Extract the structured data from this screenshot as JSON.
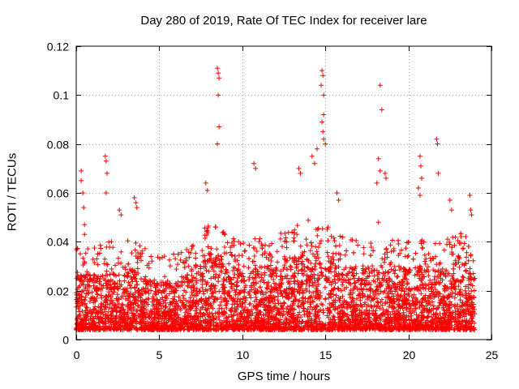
{
  "colors": {
    "series": "#ff0000",
    "axis": "#000000",
    "grid": "#a0a0a0",
    "background": "#ffffff"
  },
  "chart_data": {
    "type": "scatter",
    "title": "Day 280 of 2019, Rate Of TEC Index for receiver lare",
    "xlabel": "GPS time / hours",
    "ylabel": "ROTI / TECUs",
    "xlim": [
      0,
      25
    ],
    "ylim": [
      0,
      0.12
    ],
    "xticks": [
      0,
      5,
      10,
      15,
      20,
      25
    ],
    "xtick_labels": [
      "0",
      "5",
      "10",
      "15",
      "20",
      "25"
    ],
    "yticks": [
      0,
      0.02,
      0.04,
      0.06,
      0.08,
      0.1,
      0.12
    ],
    "ytick_labels": [
      "0",
      "0.02",
      "0.04",
      "0.06",
      "0.08",
      "0.1",
      "0.12"
    ],
    "grid": true,
    "marker": "+",
    "series": [
      {
        "name": "ROTI",
        "notable_points": [
          {
            "x": 0.3,
            "y": 0.069
          },
          {
            "x": 0.3,
            "y": 0.065
          },
          {
            "x": 0.4,
            "y": 0.06
          },
          {
            "x": 0.45,
            "y": 0.054
          },
          {
            "x": 0.5,
            "y": 0.047
          },
          {
            "x": 0.5,
            "y": 0.043
          },
          {
            "x": 1.75,
            "y": 0.075
          },
          {
            "x": 1.8,
            "y": 0.073
          },
          {
            "x": 1.85,
            "y": 0.068
          },
          {
            "x": 1.8,
            "y": 0.06
          },
          {
            "x": 2.6,
            "y": 0.053
          },
          {
            "x": 2.7,
            "y": 0.051
          },
          {
            "x": 3.5,
            "y": 0.058
          },
          {
            "x": 3.6,
            "y": 0.056
          },
          {
            "x": 3.65,
            "y": 0.054
          },
          {
            "x": 8.5,
            "y": 0.111
          },
          {
            "x": 8.55,
            "y": 0.109
          },
          {
            "x": 8.6,
            "y": 0.107
          },
          {
            "x": 8.55,
            "y": 0.1
          },
          {
            "x": 8.6,
            "y": 0.087
          },
          {
            "x": 8.5,
            "y": 0.08
          },
          {
            "x": 7.8,
            "y": 0.064
          },
          {
            "x": 7.9,
            "y": 0.061
          },
          {
            "x": 10.7,
            "y": 0.072
          },
          {
            "x": 10.8,
            "y": 0.07
          },
          {
            "x": 13.4,
            "y": 0.07
          },
          {
            "x": 13.5,
            "y": 0.068
          },
          {
            "x": 14.2,
            "y": 0.075
          },
          {
            "x": 14.35,
            "y": 0.072
          },
          {
            "x": 14.5,
            "y": 0.078
          },
          {
            "x": 14.8,
            "y": 0.11
          },
          {
            "x": 14.85,
            "y": 0.108
          },
          {
            "x": 14.75,
            "y": 0.104
          },
          {
            "x": 14.9,
            "y": 0.1
          },
          {
            "x": 14.9,
            "y": 0.092
          },
          {
            "x": 14.8,
            "y": 0.089
          },
          {
            "x": 14.85,
            "y": 0.085
          },
          {
            "x": 14.9,
            "y": 0.082
          },
          {
            "x": 15.0,
            "y": 0.08
          },
          {
            "x": 15.7,
            "y": 0.06
          },
          {
            "x": 15.8,
            "y": 0.057
          },
          {
            "x": 18.3,
            "y": 0.104
          },
          {
            "x": 18.4,
            "y": 0.094
          },
          {
            "x": 18.2,
            "y": 0.074
          },
          {
            "x": 18.3,
            "y": 0.069
          },
          {
            "x": 18.1,
            "y": 0.064
          },
          {
            "x": 18.6,
            "y": 0.068
          },
          {
            "x": 18.65,
            "y": 0.066
          },
          {
            "x": 18.2,
            "y": 0.048
          },
          {
            "x": 20.7,
            "y": 0.075
          },
          {
            "x": 20.75,
            "y": 0.071
          },
          {
            "x": 20.8,
            "y": 0.066
          },
          {
            "x": 20.6,
            "y": 0.062
          },
          {
            "x": 20.7,
            "y": 0.059
          },
          {
            "x": 21.7,
            "y": 0.082
          },
          {
            "x": 21.75,
            "y": 0.08
          },
          {
            "x": 21.8,
            "y": 0.068
          },
          {
            "x": 22.5,
            "y": 0.057
          },
          {
            "x": 22.6,
            "y": 0.053
          },
          {
            "x": 23.7,
            "y": 0.059
          },
          {
            "x": 23.75,
            "y": 0.053
          },
          {
            "x": 23.8,
            "y": 0.051
          }
        ],
        "bulk_summary": {
          "x_range": [
            0,
            24
          ],
          "typical_y_range": [
            0.005,
            0.025
          ],
          "dense_band_y_max": [
            {
              "x": 0,
              "y": 0.027
            },
            {
              "x": 1,
              "y": 0.026
            },
            {
              "x": 2,
              "y": 0.028
            },
            {
              "x": 3,
              "y": 0.03
            },
            {
              "x": 4,
              "y": 0.027
            },
            {
              "x": 5,
              "y": 0.024
            },
            {
              "x": 6,
              "y": 0.023
            },
            {
              "x": 7,
              "y": 0.03
            },
            {
              "x": 8,
              "y": 0.036
            },
            {
              "x": 9,
              "y": 0.032
            },
            {
              "x": 10,
              "y": 0.028
            },
            {
              "x": 11,
              "y": 0.03
            },
            {
              "x": 12,
              "y": 0.031
            },
            {
              "x": 13,
              "y": 0.034
            },
            {
              "x": 14,
              "y": 0.037
            },
            {
              "x": 15,
              "y": 0.036
            },
            {
              "x": 16,
              "y": 0.031
            },
            {
              "x": 17,
              "y": 0.029
            },
            {
              "x": 18,
              "y": 0.03
            },
            {
              "x": 19,
              "y": 0.03
            },
            {
              "x": 20,
              "y": 0.029
            },
            {
              "x": 21,
              "y": 0.03
            },
            {
              "x": 22,
              "y": 0.029
            },
            {
              "x": 23,
              "y": 0.032
            },
            {
              "x": 24,
              "y": 0.03
            }
          ]
        }
      }
    ]
  }
}
